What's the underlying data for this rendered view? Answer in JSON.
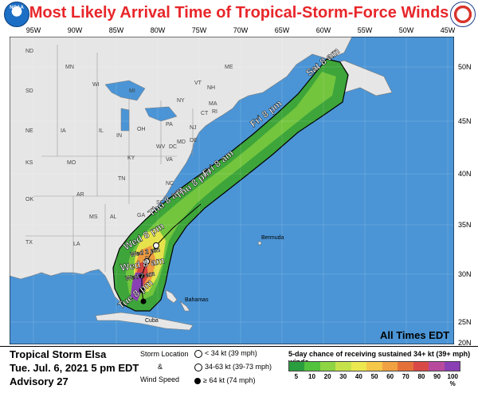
{
  "title": "Most Likely Arrival Time of Tropical-Storm-Force Winds",
  "logos": {
    "noaa": "NOAA",
    "nws_text": "NATIONAL WEATHER SERVICE"
  },
  "longitude_labels": [
    "95W",
    "90W",
    "85W",
    "80W",
    "75W",
    "70W",
    "65W",
    "60W",
    "55W",
    "50W",
    "45W"
  ],
  "latitude_labels": [
    "50N",
    "45N",
    "40N",
    "35N",
    "30N",
    "25N",
    "20N"
  ],
  "states": [
    "ME",
    "NH",
    "VT",
    "MA",
    "NY",
    "CT",
    "RI",
    "PA",
    "NJ",
    "DE",
    "MD",
    "DC",
    "OH",
    "WV",
    "VA",
    "KY",
    "TN",
    "NC",
    "SC",
    "GA",
    "AL",
    "MS",
    "FL",
    "LA",
    "AR",
    "MO",
    "IL",
    "IN",
    "MI",
    "WI",
    "MN",
    "IA",
    "NE",
    "KS",
    "OK",
    "TX",
    "ND",
    "SD"
  ],
  "places": {
    "bermuda": "Bermuda",
    "bahamas": "Bahamas",
    "cuba": "Cuba"
  },
  "arrival_labels": [
    "Tue 8 pm",
    "Wed 2 am",
    "Wed 8 am",
    "Wed 2 pm",
    "Wed 8 pm",
    "Thu 8 am",
    "Thu 8 pm",
    "Fri 8 am",
    "Fri 8 pm",
    "Sat 8 am"
  ],
  "all_times": "All Times EDT",
  "storm": {
    "name": "Tropical Storm Elsa",
    "issued": "Tue. Jul. 6, 2021  5 pm EDT",
    "advisory": "Advisory 27"
  },
  "legend": {
    "storm_location": "Storm Location",
    "amp": "&",
    "wind_speed": "Wind Speed",
    "sym1": "< 34 kt (39 mph)",
    "sym2": "34-63 kt (39-73 mph)",
    "sym3": "≥ 64 kt (74 mph)",
    "chance_title": "5-day chance of receiving sustained 34+ kt (39+ mph) winds",
    "scale_labels": [
      "5",
      "10",
      "20",
      "30",
      "40",
      "50",
      "60",
      "70",
      "80",
      "90",
      "100 %"
    ],
    "scale_colors": [
      "#2a9d3f",
      "#53c23d",
      "#8ed443",
      "#c6e24a",
      "#ece84f",
      "#f5c84a",
      "#f0a142",
      "#e5713a",
      "#d94a46",
      "#b84a9d",
      "#8a3fb5"
    ]
  },
  "colors": {
    "ocean": "#4b95d6",
    "land": "#e6e6e6",
    "title_red": "#e8262a",
    "border": "#888888"
  }
}
